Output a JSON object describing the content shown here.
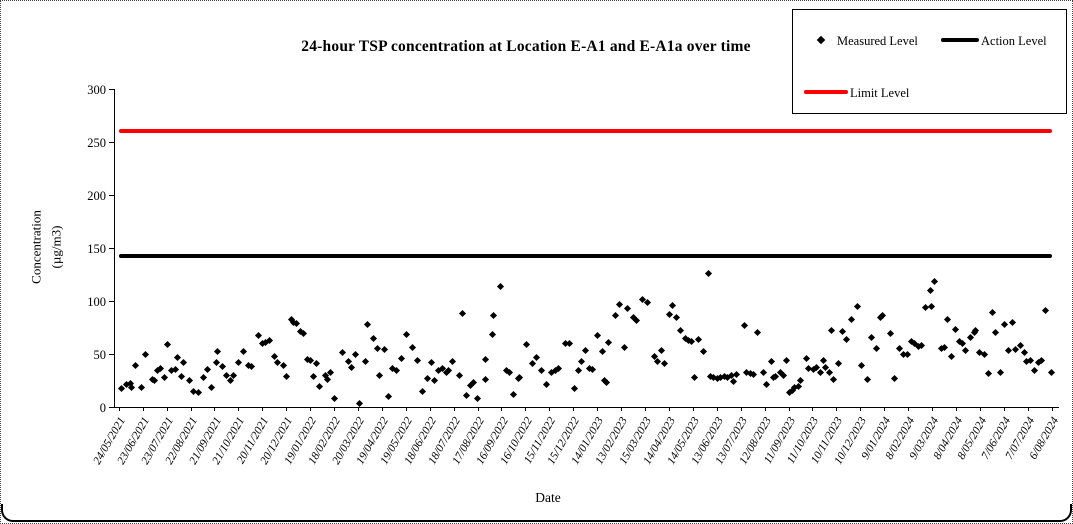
{
  "window": {
    "background": "#ffffff",
    "frame_color": "#000000"
  },
  "chart_data": {
    "type": "scatter",
    "title": "24-hour TSP concentration at Location E-A1 and E-A1a over time",
    "xlabel": "Date",
    "ylabel_lines": [
      "Concentration",
      "(µg/m3)"
    ],
    "ylim": [
      0,
      300
    ],
    "y_ticks": [
      0,
      50,
      100,
      150,
      200,
      250,
      300
    ],
    "grid": false,
    "x_tick_labels": [
      "24/05/2021",
      "23/06/2021",
      "23/07/2021",
      "22/08/2021",
      "21/09/2021",
      "21/10/2021",
      "20/11/2021",
      "20/12/2021",
      "19/01/2022",
      "18/02/2022",
      "20/03/2022",
      "19/04/2022",
      "19/05/2022",
      "18/06/2022",
      "18/07/2022",
      "17/08/2022",
      "16/09/2022",
      "16/10/2022",
      "15/11/2022",
      "15/12/2022",
      "14/01/2023",
      "13/02/2023",
      "15/03/2023",
      "14/04/2023",
      "14/05/2023",
      "13/06/2023",
      "13/07/2023",
      "12/08/2023",
      "11/09/2023",
      "11/10/2023",
      "10/11/2023",
      "10/12/2023",
      "9/01/2024",
      "8/02/2024",
      "9/03/2024",
      "8/04/2024",
      "8/05/2024",
      "7/06/2024",
      "7/07/2024",
      "6/08/2024"
    ],
    "legend": {
      "position": "top-right",
      "items": [
        {
          "label": "Measured Level",
          "symbol": "diamond-marker",
          "color": "#000000"
        },
        {
          "label": "Action Level",
          "symbol": "thick-line",
          "color": "#000000"
        },
        {
          "label": "Limit Level",
          "symbol": "thick-line",
          "color": "#ff0000"
        }
      ]
    },
    "reference_lines": [
      {
        "name": "Action Level",
        "value": 142,
        "color": "#000000"
      },
      {
        "name": "Limit Level",
        "value": 260,
        "color": "#ff0000"
      }
    ],
    "series": [
      {
        "name": "Measured Level",
        "marker": "diamond",
        "color": "#000000",
        "points_format": "[x_percent_across_date_axis, concentration_ug_per_m3]",
        "points": [
          [
            0.7,
            17
          ],
          [
            1.2,
            21
          ],
          [
            1.6,
            22
          ],
          [
            1.8,
            18
          ],
          [
            2.2,
            39
          ],
          [
            2.8,
            18
          ],
          [
            3.2,
            50
          ],
          [
            4.0,
            26
          ],
          [
            4.2,
            25
          ],
          [
            4.5,
            34
          ],
          [
            4.8,
            36
          ],
          [
            5.2,
            28
          ],
          [
            5.6,
            59
          ],
          [
            6.0,
            34
          ],
          [
            6.4,
            35
          ],
          [
            6.6,
            47
          ],
          [
            7.0,
            29
          ],
          [
            7.3,
            42
          ],
          [
            7.9,
            25
          ],
          [
            8.3,
            15
          ],
          [
            8.8,
            14
          ],
          [
            9.4,
            28
          ],
          [
            9.8,
            35
          ],
          [
            10.2,
            18
          ],
          [
            10.7,
            42
          ],
          [
            10.9,
            52
          ],
          [
            11.4,
            38
          ],
          [
            11.8,
            30
          ],
          [
            12.2,
            25
          ],
          [
            12.6,
            30
          ],
          [
            13.1,
            42
          ],
          [
            13.6,
            52
          ],
          [
            14.1,
            39
          ],
          [
            14.5,
            38
          ],
          [
            15.2,
            67
          ],
          [
            15.6,
            60
          ],
          [
            15.9,
            61
          ],
          [
            16.4,
            63
          ],
          [
            16.9,
            48
          ],
          [
            17.2,
            42
          ],
          [
            17.8,
            39
          ],
          [
            18.2,
            29
          ],
          [
            18.7,
            83
          ],
          [
            18.9,
            80
          ],
          [
            19.2,
            79
          ],
          [
            19.7,
            71
          ],
          [
            20.0,
            69
          ],
          [
            20.4,
            45
          ],
          [
            20.7,
            44
          ],
          [
            21.0,
            29
          ],
          [
            21.3,
            41
          ],
          [
            21.7,
            19
          ],
          [
            22.3,
            30
          ],
          [
            22.5,
            26
          ],
          [
            22.8,
            33
          ],
          [
            23.2,
            8
          ],
          [
            24.1,
            51
          ],
          [
            24.7,
            43
          ],
          [
            25.0,
            37
          ],
          [
            25.5,
            50
          ],
          [
            25.9,
            3
          ],
          [
            26.5,
            43
          ],
          [
            26.8,
            78
          ],
          [
            27.4,
            65
          ],
          [
            27.8,
            55
          ],
          [
            28.0,
            30
          ],
          [
            28.5,
            54
          ],
          [
            29.0,
            10
          ],
          [
            29.4,
            36
          ],
          [
            29.8,
            34
          ],
          [
            30.3,
            46
          ],
          [
            30.9,
            68
          ],
          [
            31.5,
            56
          ],
          [
            32.0,
            44
          ],
          [
            32.6,
            15
          ],
          [
            33.1,
            27
          ],
          [
            33.5,
            42
          ],
          [
            33.8,
            25
          ],
          [
            34.3,
            34
          ],
          [
            34.7,
            36
          ],
          [
            35.1,
            33
          ],
          [
            35.3,
            34
          ],
          [
            35.8,
            43
          ],
          [
            36.5,
            30
          ],
          [
            36.8,
            88
          ],
          [
            37.2,
            11
          ],
          [
            37.7,
            20
          ],
          [
            38.0,
            23
          ],
          [
            38.4,
            8
          ],
          [
            39.2,
            26
          ],
          [
            39.3,
            45
          ],
          [
            40.0,
            68
          ],
          [
            40.1,
            86
          ],
          [
            40.8,
            114
          ],
          [
            41.5,
            34
          ],
          [
            41.8,
            33
          ],
          [
            42.2,
            12
          ],
          [
            42.7,
            27
          ],
          [
            42.9,
            28
          ],
          [
            43.6,
            59
          ],
          [
            44.2,
            41
          ],
          [
            44.6,
            47
          ],
          [
            45.2,
            34
          ],
          [
            45.7,
            21
          ],
          [
            46.2,
            33
          ],
          [
            46.7,
            34
          ],
          [
            47.0,
            36
          ],
          [
            47.7,
            60
          ],
          [
            48.1,
            60
          ],
          [
            48.7,
            17
          ],
          [
            49.1,
            34
          ],
          [
            49.4,
            43
          ],
          [
            49.8,
            53
          ],
          [
            50.3,
            36
          ],
          [
            50.6,
            35
          ],
          [
            51.1,
            67
          ],
          [
            51.6,
            52
          ],
          [
            51.9,
            25
          ],
          [
            52.1,
            23
          ],
          [
            52.3,
            61
          ],
          [
            53.0,
            86
          ],
          [
            53.4,
            97
          ],
          [
            54.0,
            56
          ],
          [
            54.3,
            93
          ],
          [
            54.9,
            84
          ],
          [
            55.2,
            82
          ],
          [
            55.9,
            101
          ],
          [
            56.4,
            99
          ],
          [
            57.1,
            48
          ],
          [
            57.5,
            43
          ],
          [
            57.9,
            53
          ],
          [
            58.2,
            41
          ],
          [
            58.7,
            87
          ],
          [
            59.1,
            96
          ],
          [
            59.5,
            84
          ],
          [
            59.9,
            72
          ],
          [
            60.4,
            65
          ],
          [
            60.7,
            63
          ],
          [
            61.1,
            62
          ],
          [
            61.4,
            28
          ],
          [
            61.8,
            64
          ],
          [
            62.3,
            52
          ],
          [
            62.9,
            126
          ],
          [
            63.1,
            29
          ],
          [
            63.4,
            28
          ],
          [
            63.8,
            27
          ],
          [
            64.1,
            28
          ],
          [
            64.6,
            29
          ],
          [
            64.9,
            28
          ],
          [
            65.3,
            30
          ],
          [
            65.5,
            24
          ],
          [
            65.8,
            31
          ],
          [
            66.7,
            77
          ],
          [
            66.9,
            33
          ],
          [
            67.3,
            32
          ],
          [
            67.6,
            31
          ],
          [
            68.1,
            70
          ],
          [
            68.7,
            33
          ],
          [
            69.0,
            21
          ],
          [
            69.5,
            43
          ],
          [
            69.8,
            28
          ],
          [
            70.0,
            29
          ],
          [
            70.5,
            33
          ],
          [
            70.8,
            30
          ],
          [
            71.1,
            44
          ],
          [
            71.4,
            14
          ],
          [
            71.8,
            16
          ],
          [
            72.0,
            18
          ],
          [
            72.4,
            19
          ],
          [
            72.6,
            25
          ],
          [
            73.2,
            46
          ],
          [
            73.5,
            36
          ],
          [
            74.0,
            35
          ],
          [
            74.3,
            37
          ],
          [
            74.7,
            33
          ],
          [
            75.1,
            44
          ],
          [
            75.3,
            37
          ],
          [
            75.7,
            33
          ],
          [
            75.9,
            72
          ],
          [
            76.1,
            26
          ],
          [
            76.6,
            41
          ],
          [
            77.1,
            71
          ],
          [
            77.5,
            64
          ],
          [
            78.0,
            83
          ],
          [
            78.7,
            95
          ],
          [
            79.1,
            39
          ],
          [
            79.7,
            26
          ],
          [
            80.1,
            66
          ],
          [
            80.7,
            55
          ],
          [
            81.1,
            84
          ],
          [
            81.3,
            86
          ],
          [
            82.1,
            69
          ],
          [
            82.6,
            27
          ],
          [
            83.1,
            55
          ],
          [
            83.5,
            50
          ],
          [
            83.9,
            50
          ],
          [
            84.4,
            62
          ],
          [
            84.7,
            60
          ],
          [
            85.1,
            57
          ],
          [
            85.4,
            58
          ],
          [
            85.9,
            94
          ],
          [
            86.4,
            110
          ],
          [
            86.5,
            95
          ],
          [
            86.8,
            118
          ],
          [
            87.5,
            55
          ],
          [
            87.9,
            56
          ],
          [
            88.2,
            83
          ],
          [
            88.6,
            48
          ],
          [
            89.0,
            73
          ],
          [
            89.5,
            62
          ],
          [
            89.8,
            60
          ],
          [
            90.1,
            53
          ],
          [
            90.6,
            66
          ],
          [
            91.0,
            70
          ],
          [
            91.2,
            72
          ],
          [
            91.6,
            51
          ],
          [
            92.1,
            50
          ],
          [
            92.5,
            32
          ],
          [
            93.0,
            89
          ],
          [
            93.3,
            70
          ],
          [
            93.8,
            33
          ],
          [
            94.2,
            78
          ],
          [
            94.6,
            53
          ],
          [
            95.1,
            80
          ],
          [
            95.4,
            54
          ],
          [
            95.9,
            58
          ],
          [
            96.3,
            51
          ],
          [
            96.6,
            43
          ],
          [
            97.0,
            44
          ],
          [
            97.4,
            34
          ],
          [
            97.8,
            42
          ],
          [
            98.1,
            44
          ],
          [
            98.6,
            91
          ],
          [
            99.2,
            33
          ]
        ]
      }
    ]
  }
}
